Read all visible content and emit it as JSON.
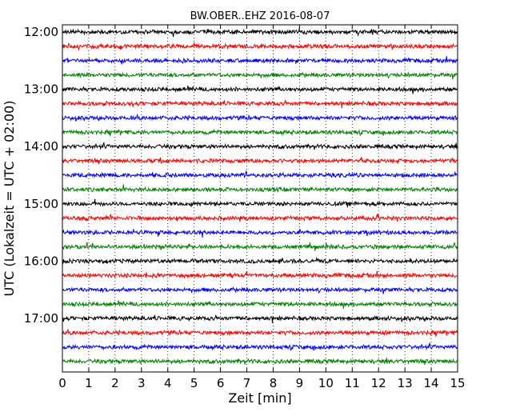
{
  "chart_data": {
    "type": "line",
    "title": "BW.OBER..EHZ 2016-08-07",
    "xlabel": "Zeit  [min]",
    "ylabel": "UTC (Lokalzeit = UTC + 02:00)",
    "xlim": [
      0,
      15
    ],
    "x_ticks": [
      "0",
      "1",
      "2",
      "3",
      "4",
      "5",
      "6",
      "7",
      "8",
      "9",
      "10",
      "11",
      "12",
      "13",
      "14",
      "15"
    ],
    "y_tick_labels": [
      "12:00",
      "13:00",
      "14:00",
      "15:00",
      "16:00",
      "17:00"
    ],
    "grid": "vertical dotted",
    "trace_interval_min": 15,
    "trace_start_time": "12:00",
    "trace_colors": [
      "#000000",
      "#ff0000",
      "#0000ff",
      "#008000"
    ],
    "series": [
      {
        "label": "12:00",
        "color": "#000000"
      },
      {
        "label": "12:15",
        "color": "#ff0000"
      },
      {
        "label": "12:30",
        "color": "#0000ff"
      },
      {
        "label": "12:45",
        "color": "#008000"
      },
      {
        "label": "13:00",
        "color": "#000000"
      },
      {
        "label": "13:15",
        "color": "#ff0000"
      },
      {
        "label": "13:30",
        "color": "#0000ff"
      },
      {
        "label": "13:45",
        "color": "#008000"
      },
      {
        "label": "14:00",
        "color": "#000000"
      },
      {
        "label": "14:15",
        "color": "#ff0000"
      },
      {
        "label": "14:30",
        "color": "#0000ff"
      },
      {
        "label": "14:45",
        "color": "#008000"
      },
      {
        "label": "15:00",
        "color": "#000000"
      },
      {
        "label": "15:15",
        "color": "#ff0000"
      },
      {
        "label": "15:30",
        "color": "#0000ff"
      },
      {
        "label": "15:45",
        "color": "#008000"
      },
      {
        "label": "16:00",
        "color": "#000000"
      },
      {
        "label": "16:15",
        "color": "#ff0000"
      },
      {
        "label": "16:30",
        "color": "#0000ff"
      },
      {
        "label": "16:45",
        "color": "#008000"
      },
      {
        "label": "17:00",
        "color": "#000000"
      },
      {
        "label": "17:15",
        "color": "#ff0000"
      },
      {
        "label": "17:30",
        "color": "#0000ff"
      },
      {
        "label": "17:45",
        "color": "#008000"
      }
    ]
  }
}
